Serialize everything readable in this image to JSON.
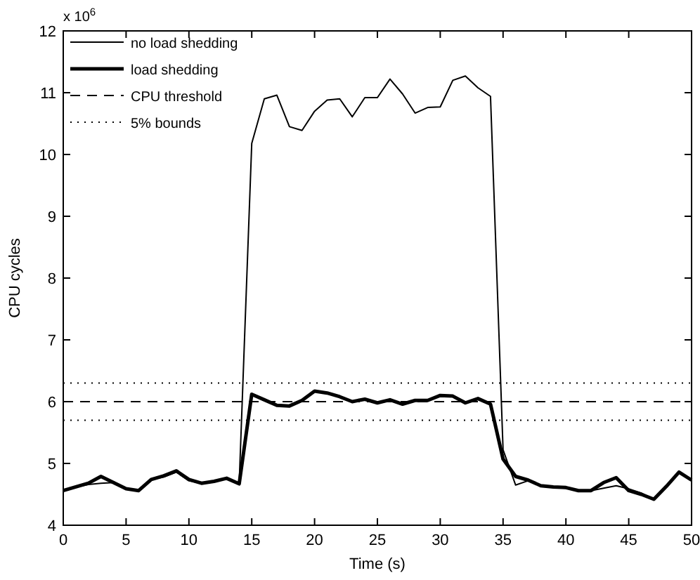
{
  "chart_data": {
    "type": "line",
    "xlabel": "Time (s)",
    "ylabel": "CPU cycles",
    "annotations": [
      "x 10$^{6}$"
    ],
    "x": [
      0,
      1,
      2,
      3,
      4,
      5,
      6,
      7,
      8,
      9,
      10,
      11,
      12,
      13,
      14,
      15,
      16,
      17,
      18,
      19,
      20,
      21,
      22,
      23,
      24,
      25,
      26,
      27,
      28,
      29,
      30,
      31,
      32,
      33,
      34,
      35,
      36,
      37,
      38,
      39,
      40,
      41,
      42,
      43,
      44,
      45,
      46,
      47,
      48,
      49,
      50
    ],
    "series": [
      {
        "name": "no load shedding",
        "color": "#000000",
        "values": [
          4.56,
          4.62,
          4.66,
          4.68,
          4.69,
          4.59,
          4.56,
          4.74,
          4.78,
          4.86,
          4.72,
          4.68,
          4.71,
          4.75,
          4.67,
          10.18,
          10.9,
          10.96,
          10.45,
          10.39,
          10.7,
          10.88,
          10.9,
          10.61,
          10.92,
          10.92,
          11.22,
          10.98,
          10.67,
          10.76,
          10.77,
          11.2,
          11.27,
          11.08,
          10.94,
          5.22,
          4.65,
          4.72,
          4.64,
          4.61,
          4.6,
          4.56,
          4.56,
          4.6,
          4.64,
          4.59,
          4.52,
          4.42,
          4.63,
          4.86,
          4.73
        ]
      },
      {
        "name": "load shedding",
        "color": "#000000",
        "values": [
          4.56,
          4.62,
          4.68,
          4.79,
          4.69,
          4.59,
          4.56,
          4.74,
          4.8,
          4.88,
          4.74,
          4.68,
          4.71,
          4.76,
          4.67,
          6.12,
          6.03,
          5.94,
          5.93,
          6.02,
          6.17,
          6.14,
          6.08,
          6.0,
          6.04,
          5.98,
          6.03,
          5.96,
          6.02,
          6.02,
          6.1,
          6.09,
          5.98,
          6.05,
          5.96,
          5.07,
          4.79,
          4.73,
          4.64,
          4.62,
          4.61,
          4.56,
          4.56,
          4.69,
          4.77,
          4.56,
          4.5,
          4.42,
          4.63,
          4.86,
          4.73
        ]
      }
    ],
    "ref_lines": [
      {
        "axis": "y",
        "value": 6,
        "label": "CPU threshold",
        "line_style": "dashed",
        "color": "#000000"
      },
      {
        "axis": "y",
        "value": 6.3,
        "label": "5% bounds",
        "line_style": "dotted",
        "color": "#000000"
      },
      {
        "axis": "y",
        "value": 5.7,
        "line_style": "dotted",
        "color": "#000000"
      }
    ],
    "xlim": [
      0,
      50
    ],
    "xticks": [
      0,
      5,
      10,
      15,
      20,
      25,
      30,
      35,
      40,
      45,
      50
    ],
    "ylim": [
      4,
      12
    ],
    "yticks": [
      4,
      5,
      6,
      7,
      8,
      9,
      10,
      11,
      12
    ],
    "grid": false,
    "legend": "top left",
    "marker": "none",
    "line_style": "solid"
  }
}
